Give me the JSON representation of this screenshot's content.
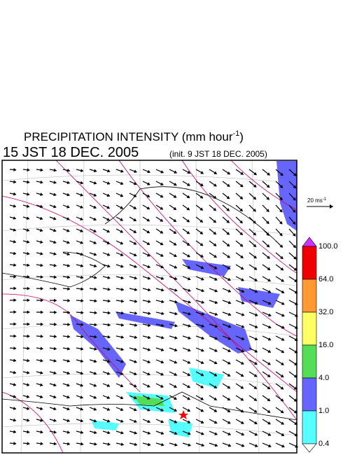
{
  "title": {
    "main": "PRECIPITATION INTENSITY (mm hour",
    "exponent": "-1",
    "close": ")"
  },
  "time": {
    "valid": "15 JST 18 DEC. 2005",
    "init": "(init. 9 JST 18 DEC. 2005)"
  },
  "vector_scale": {
    "label": "20 ms",
    "exponent": "-1"
  },
  "colorbar": {
    "over_color": "#cc33ff",
    "under_color": "#ffffff",
    "levels": [
      {
        "label": "100.0",
        "color": "#ee0000"
      },
      {
        "label": "64.0",
        "color": "#ff9933"
      },
      {
        "label": "32.0",
        "color": "#ffff66"
      },
      {
        "label": "16.0",
        "color": "#55dd55"
      },
      {
        "label": "4.0",
        "color": "#6666ff"
      },
      {
        "label": "1.0",
        "color": "#55ffff"
      },
      {
        "label": "0.4"
      }
    ]
  }
}
